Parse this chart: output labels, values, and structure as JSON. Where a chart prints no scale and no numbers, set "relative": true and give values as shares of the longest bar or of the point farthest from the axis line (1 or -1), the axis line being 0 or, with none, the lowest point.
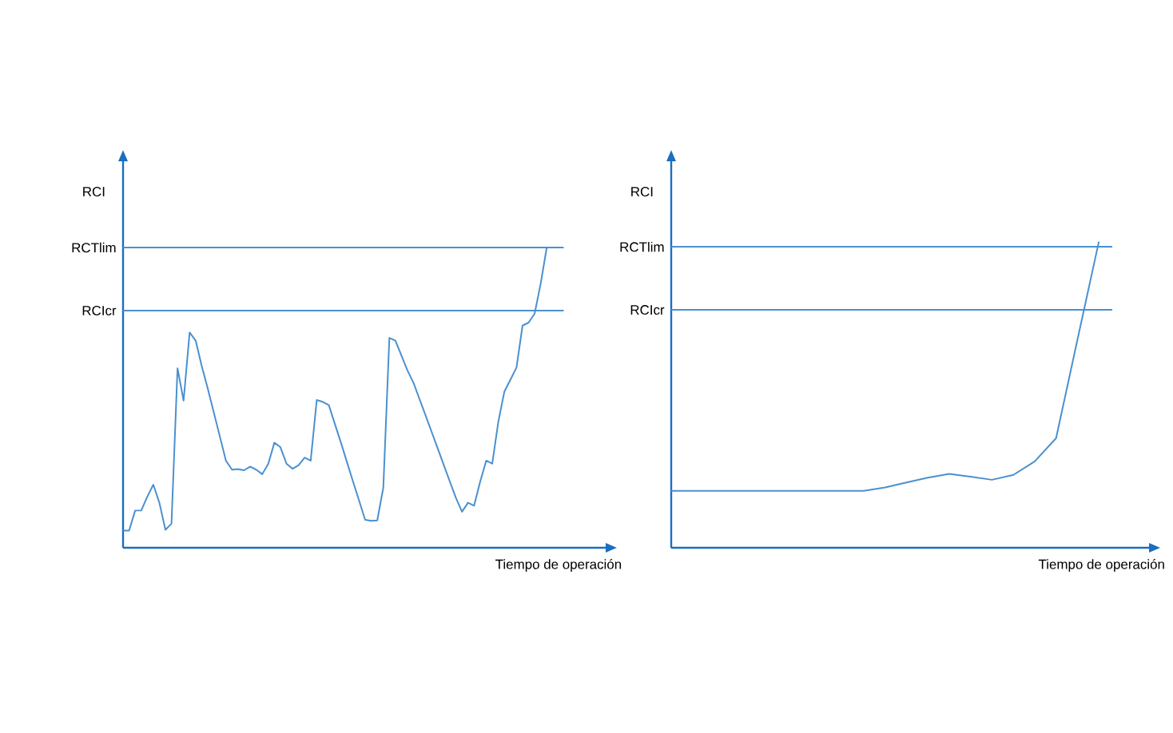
{
  "chart_data": [
    {
      "type": "line",
      "relative": true,
      "ylabel": "RCI",
      "xlabel": "Tiempo de operación",
      "categories": [
        null,
        null,
        null,
        null,
        null,
        null,
        null,
        null,
        null,
        null,
        null,
        null,
        null,
        null,
        null,
        null,
        null,
        null,
        null,
        null,
        null,
        null,
        null,
        null,
        null,
        null,
        null,
        null,
        null,
        null,
        null,
        null,
        null,
        null,
        null,
        null,
        null,
        null,
        null,
        null,
        null,
        null,
        null,
        null,
        null,
        null,
        null,
        null,
        null,
        null,
        null,
        null,
        null,
        null,
        null,
        null,
        null,
        null,
        null,
        null,
        null,
        null,
        null,
        null,
        null,
        null,
        null,
        null,
        null,
        null,
        null
      ],
      "series": [
        {
          "color": "#4a90d0",
          "values": [
            0.057,
            0.057,
            0.124,
            0.124,
            0.17,
            0.21,
            0.15,
            0.06,
            0.08,
            0.598,
            0.49,
            0.717,
            0.69,
            0.605,
            0.53,
            0.45,
            0.37,
            0.29,
            0.26,
            0.262,
            0.258,
            0.27,
            0.26,
            0.245,
            0.28,
            0.35,
            0.335,
            0.28,
            0.263,
            0.275,
            0.3,
            0.29,
            0.492,
            0.486,
            0.475,
            0.412,
            0.35,
            0.285,
            0.22,
            0.157,
            0.093,
            0.09,
            0.091,
            0.2,
            0.699,
            0.69,
            0.64,
            0.59,
            0.549,
            0.494,
            0.44,
            0.385,
            0.33,
            0.275,
            0.22,
            0.166,
            0.12,
            0.15,
            0.14,
            0.22,
            0.29,
            0.28,
            0.42,
            0.52,
            0.56,
            0.6,
            0.74,
            0.75,
            0.78,
            0.88,
            1.0
          ]
        }
      ],
      "ref_lines": [
        {
          "axis": "y",
          "value": 1.0,
          "label": "RCTlim",
          "color": "#4a90d0"
        },
        {
          "axis": "y",
          "value": 0.79,
          "label": "RCIcr",
          "color": "#4a90d0"
        }
      ]
    },
    {
      "type": "line",
      "relative": true,
      "ylabel": "RCI",
      "xlabel": "Tiempo de operación",
      "categories": [
        null,
        null,
        null,
        null,
        null,
        null,
        null,
        null,
        null,
        null,
        null,
        null,
        null,
        null,
        null,
        null,
        null,
        null,
        null,
        null,
        null
      ],
      "series": [
        {
          "color": "#4a90d0",
          "values": [
            0.186,
            0.186,
            0.186,
            0.186,
            0.186,
            0.186,
            0.186,
            0.186,
            0.186,
            0.186,
            0.197,
            0.213,
            0.229,
            0.241,
            0.232,
            0.222,
            0.238,
            0.282,
            0.358,
            0.68,
            1.0
          ]
        }
      ],
      "ref_lines": [
        {
          "axis": "y",
          "value": 0.983,
          "label": "RCTlim",
          "color": "#4a90d0"
        },
        {
          "axis": "y",
          "value": 0.777,
          "label": "RCIcr",
          "color": "#4a90d0"
        }
      ]
    }
  ]
}
